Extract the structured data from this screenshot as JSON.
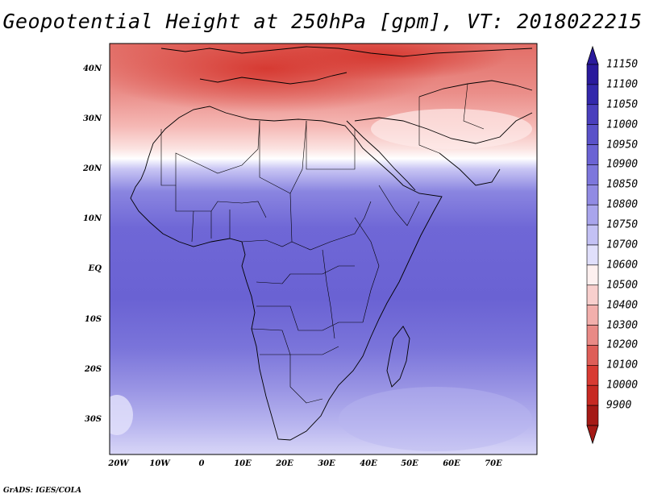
{
  "title": "Geopotential Height at 250hPa [gpm], VT: 2018022215",
  "credit": "GrADS: IGES/COLA",
  "lat_labels": [
    "40N",
    "30N",
    "20N",
    "10N",
    "EQ",
    "10S",
    "20S",
    "30S"
  ],
  "lon_labels": [
    "20W",
    "10W",
    "0",
    "10E",
    "20E",
    "30E",
    "40E",
    "50E",
    "60E",
    "70E"
  ],
  "colorbar": {
    "levels": [
      "11150",
      "11100",
      "11050",
      "11000",
      "10950",
      "10900",
      "10850",
      "10800",
      "10750",
      "10700",
      "10600",
      "10500",
      "10400",
      "10300",
      "10200",
      "10100",
      "10000",
      "9900"
    ],
    "colors": [
      "#2a1a9c",
      "#3328ab",
      "#4a3fbd",
      "#5a52c9",
      "#6b63d4",
      "#7d77dc",
      "#918be3",
      "#a9a5ec",
      "#c3c1f4",
      "#e0dffb",
      "#fdf0ef",
      "#f8cfcd",
      "#f2afac",
      "#e98a86",
      "#de5e58",
      "#d83b33",
      "#c72a23",
      "#a51a16"
    ]
  }
}
